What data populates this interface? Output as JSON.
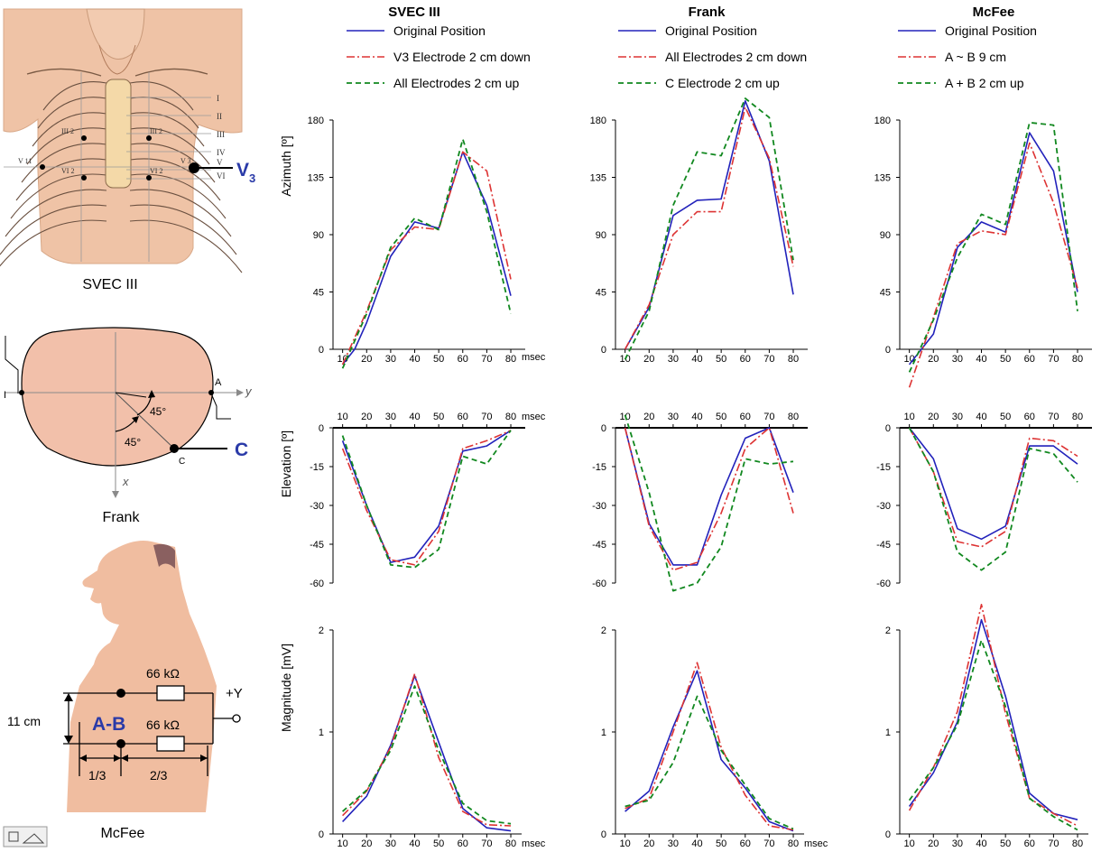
{
  "diagrams": {
    "svec": {
      "caption": "SVEC III",
      "electrode_label_main": "V",
      "electrode_label_sub": "3",
      "rib_labels": [
        "I",
        "II",
        "III",
        "IV",
        "V",
        "VI"
      ],
      "point_labels": {
        "iii_l": "III 2",
        "iii_r": "III 2",
        "vi_l": "VI 2",
        "vi_r": "VI 2",
        "v11": "V 11",
        "v3": "V 3"
      }
    },
    "frank": {
      "caption": "Frank",
      "label_A": "A",
      "label_I": "I",
      "label_C": "C",
      "label_C_small": "C",
      "axis_y": "y",
      "axis_x": "x",
      "angle1": "45°",
      "angle2": "45°"
    },
    "mcfee": {
      "caption": "McFee",
      "ab_label": "A-B",
      "r1": "66 kΩ",
      "r2": "66 kΩ",
      "plus_y": "+Y",
      "height": "11 cm",
      "frac1": "1/3",
      "frac2": "2/3"
    }
  },
  "columns": [
    {
      "title": "SVEC III",
      "legend": [
        "Original Position",
        "V3 Electrode 2 cm down",
        "All Electrodes 2 cm up"
      ]
    },
    {
      "title": "Frank",
      "legend": [
        "Original Position",
        "All Electrodes 2 cm down",
        "C Electrode 2 cm up"
      ]
    },
    {
      "title": "McFee",
      "legend": [
        "Original Position",
        "A ~ B   9 cm",
        "A + B   2 cm up"
      ]
    }
  ],
  "row_labels": [
    "Azimuth [º]",
    "Elevation [º]",
    "Magnitude [mV]"
  ],
  "x_unit": "msec",
  "colors": {
    "original": "#2222bb",
    "variant1": "#dd3333",
    "variant2": "#11881f"
  },
  "chart_data": [
    {
      "type": "line",
      "row": "Azimuth",
      "column": "SVEC III",
      "x": [
        10,
        20,
        30,
        40,
        50,
        60,
        70,
        80
      ],
      "ylim": [
        0,
        180
      ],
      "yticks": [
        0,
        45,
        90,
        135,
        180
      ],
      "x_extend": [
        6,
        86
      ],
      "series": [
        {
          "name": "Original Position",
          "x": [
            10,
            15,
            20,
            30,
            40,
            50,
            60,
            70,
            80
          ],
          "values": [
            -12,
            0,
            21,
            73,
            100,
            95,
            155,
            113,
            42
          ]
        },
        {
          "name": "V3 Electrode 2 cm down",
          "x": [
            10,
            20,
            30,
            40,
            50,
            60,
            70,
            80
          ],
          "values": [
            -12,
            30,
            78,
            96,
            94,
            155,
            140,
            55
          ]
        },
        {
          "name": "All Electrodes 2 cm up",
          "x": [
            10,
            20,
            30,
            40,
            50,
            60,
            70,
            80
          ],
          "values": [
            -15,
            28,
            80,
            103,
            94,
            165,
            108,
            28
          ]
        }
      ]
    },
    {
      "type": "line",
      "row": "Azimuth",
      "column": "Frank",
      "x": [
        10,
        20,
        30,
        40,
        50,
        60,
        70,
        80
      ],
      "ylim": [
        0,
        180
      ],
      "yticks": [
        0,
        45,
        90,
        135,
        180
      ],
      "x_extend": [
        6,
        86
      ],
      "series": [
        {
          "name": "Original Position",
          "x": [
            10,
            20,
            30,
            40,
            50,
            60,
            70,
            80
          ],
          "values": [
            0,
            33,
            105,
            117,
            118,
            195,
            148,
            43
          ]
        },
        {
          "name": "All Electrodes 2 cm down",
          "x": [
            10,
            20,
            30,
            40,
            50,
            60,
            70,
            80
          ],
          "values": [
            0,
            35,
            90,
            108,
            108,
            190,
            150,
            65
          ]
        },
        {
          "name": "C Electrode 2 cm up",
          "x": [
            10,
            20,
            30,
            40,
            50,
            60,
            70,
            80
          ],
          "values": [
            -8,
            30,
            113,
            155,
            152,
            197,
            182,
            70
          ]
        }
      ]
    },
    {
      "type": "line",
      "row": "Azimuth",
      "column": "McFee",
      "x": [
        10,
        20,
        30,
        40,
        50,
        60,
        70,
        80
      ],
      "ylim": [
        0,
        180
      ],
      "yticks": [
        0,
        45,
        90,
        135,
        180
      ],
      "x_extend": [
        6,
        86
      ],
      "series": [
        {
          "name": "Original Position",
          "x": [
            10,
            20,
            30,
            40,
            50,
            60,
            70,
            80
          ],
          "values": [
            -12,
            12,
            80,
            100,
            92,
            170,
            140,
            45
          ]
        },
        {
          "name": "A ~ B   9 cm",
          "x": [
            10,
            20,
            30,
            40,
            50,
            60,
            70,
            80
          ],
          "values": [
            -30,
            25,
            83,
            93,
            90,
            162,
            115,
            48
          ]
        },
        {
          "name": "A + B   2 cm up",
          "x": [
            10,
            20,
            30,
            40,
            50,
            60,
            70,
            80
          ],
          "values": [
            -18,
            23,
            72,
            106,
            98,
            178,
            176,
            30
          ]
        }
      ]
    },
    {
      "type": "line",
      "row": "Elevation",
      "column": "SVEC III",
      "x": [
        10,
        20,
        30,
        40,
        50,
        60,
        70,
        80
      ],
      "ylim": [
        -60,
        0
      ],
      "yticks": [
        0,
        -15,
        -30,
        -45,
        -60
      ],
      "x_extend": [
        6,
        86
      ],
      "series": [
        {
          "name": "Original Position",
          "x": [
            10,
            20,
            30,
            40,
            50,
            60,
            70,
            80
          ],
          "values": [
            -5,
            -30,
            -52,
            -50,
            -38,
            -9,
            -7,
            -1
          ]
        },
        {
          "name": "V3 Electrode 2 cm down",
          "x": [
            10,
            20,
            30,
            40,
            50,
            60,
            70,
            80
          ],
          "values": [
            -8,
            -32,
            -51,
            -53,
            -40,
            -8,
            -5,
            -1
          ]
        },
        {
          "name": "All Electrodes 2 cm up",
          "x": [
            10,
            20,
            30,
            40,
            50,
            60,
            70,
            80
          ],
          "values": [
            -3,
            -30,
            -53,
            -54,
            -47,
            -11,
            -14,
            -1
          ]
        }
      ]
    },
    {
      "type": "line",
      "row": "Elevation",
      "column": "Frank",
      "x": [
        10,
        20,
        30,
        40,
        50,
        60,
        70,
        80
      ],
      "ylim": [
        -60,
        0
      ],
      "yticks": [
        0,
        -15,
        -30,
        -45,
        -60
      ],
      "x_extend": [
        6,
        86
      ],
      "series": [
        {
          "name": "Original Position",
          "x": [
            10,
            20,
            30,
            40,
            50,
            60,
            70,
            80
          ],
          "values": [
            0,
            -37,
            -53,
            -53,
            -26,
            -4,
            0,
            -25
          ]
        },
        {
          "name": "All Electrodes 2 cm down",
          "x": [
            10,
            20,
            30,
            40,
            50,
            60,
            70,
            80
          ],
          "values": [
            0,
            -38,
            -55,
            -52,
            -33,
            -8,
            0,
            -33
          ]
        },
        {
          "name": "C Electrode 2 cm up",
          "x": [
            10,
            20,
            30,
            40,
            50,
            60,
            70,
            80
          ],
          "values": [
            5,
            -25,
            -63,
            -60,
            -46,
            -12,
            -14,
            -13
          ]
        }
      ]
    },
    {
      "type": "line",
      "row": "Elevation",
      "column": "McFee",
      "x": [
        10,
        20,
        30,
        40,
        50,
        60,
        70,
        80
      ],
      "ylim": [
        -60,
        0
      ],
      "yticks": [
        0,
        -15,
        -30,
        -45,
        -60
      ],
      "x_extend": [
        6,
        86
      ],
      "series": [
        {
          "name": "Original Position",
          "x": [
            10,
            20,
            30,
            40,
            50,
            60,
            70,
            80
          ],
          "values": [
            0,
            -12,
            -39,
            -43,
            -38,
            -7,
            -7,
            -14
          ]
        },
        {
          "name": "A ~ B   9 cm",
          "x": [
            10,
            20,
            30,
            40,
            50,
            60,
            70,
            80
          ],
          "values": [
            0,
            -17,
            -44,
            -46,
            -40,
            -4,
            -5,
            -11
          ]
        },
        {
          "name": "A + B   2 cm up",
          "x": [
            10,
            20,
            30,
            40,
            50,
            60,
            70,
            80
          ],
          "values": [
            0,
            -17,
            -48,
            -55,
            -48,
            -8,
            -10,
            -21
          ]
        }
      ]
    },
    {
      "type": "line",
      "row": "Magnitude",
      "column": "SVEC III",
      "x": [
        10,
        20,
        30,
        40,
        50,
        60,
        70,
        80
      ],
      "ylim": [
        0,
        2
      ],
      "yticks": [
        0,
        1,
        2
      ],
      "x_extend": [
        6,
        86
      ],
      "series": [
        {
          "name": "Original Position",
          "x": [
            10,
            20,
            30,
            40,
            50,
            60,
            70,
            80
          ],
          "values": [
            0.12,
            0.37,
            0.87,
            1.55,
            0.9,
            0.25,
            0.06,
            0.03
          ]
        },
        {
          "name": "V3 Electrode 2 cm down",
          "x": [
            10,
            20,
            30,
            40,
            50,
            60,
            70,
            80
          ],
          "values": [
            0.18,
            0.42,
            0.85,
            1.57,
            0.75,
            0.22,
            0.09,
            0.08
          ]
        },
        {
          "name": "All Electrodes 2 cm up",
          "x": [
            10,
            20,
            30,
            40,
            50,
            60,
            70,
            80
          ],
          "values": [
            0.22,
            0.43,
            0.82,
            1.45,
            0.82,
            0.3,
            0.13,
            0.1
          ]
        }
      ]
    },
    {
      "type": "line",
      "row": "Magnitude",
      "column": "Frank",
      "x": [
        10,
        20,
        30,
        40,
        50,
        60,
        70,
        80
      ],
      "ylim": [
        0,
        2
      ],
      "yticks": [
        0,
        1,
        2
      ],
      "x_extend": [
        6,
        86
      ],
      "series": [
        {
          "name": "Original Position",
          "x": [
            10,
            20,
            30,
            40,
            50,
            60,
            70,
            80
          ],
          "values": [
            0.22,
            0.42,
            1.05,
            1.6,
            0.73,
            0.45,
            0.12,
            0.03
          ]
        },
        {
          "name": "All Electrodes 2 cm down",
          "x": [
            10,
            20,
            30,
            40,
            50,
            60,
            70,
            80
          ],
          "values": [
            0.25,
            0.35,
            1.0,
            1.68,
            0.85,
            0.38,
            0.08,
            0.04
          ]
        },
        {
          "name": "C Electrode 2 cm up",
          "x": [
            10,
            20,
            30,
            40,
            50,
            60,
            70,
            80
          ],
          "values": [
            0.27,
            0.33,
            0.7,
            1.35,
            0.82,
            0.48,
            0.15,
            0.05
          ]
        }
      ]
    },
    {
      "type": "line",
      "row": "Magnitude",
      "column": "McFee",
      "x": [
        10,
        20,
        30,
        40,
        50,
        60,
        70,
        80
      ],
      "ylim": [
        0,
        2
      ],
      "yticks": [
        0,
        1,
        2
      ],
      "x_extend": [
        6,
        86
      ],
      "series": [
        {
          "name": "Original Position",
          "x": [
            10,
            20,
            30,
            40,
            50,
            60,
            70,
            80
          ],
          "values": [
            0.27,
            0.6,
            1.1,
            2.1,
            1.35,
            0.4,
            0.2,
            0.14
          ]
        },
        {
          "name": "A ~ B   9 cm",
          "x": [
            10,
            20,
            30,
            40,
            50,
            60,
            70,
            80
          ],
          "values": [
            0.23,
            0.65,
            1.2,
            2.25,
            1.18,
            0.35,
            0.2,
            0.08
          ]
        },
        {
          "name": "A + B   2 cm up",
          "x": [
            10,
            20,
            30,
            40,
            50,
            60,
            70,
            80
          ],
          "values": [
            0.33,
            0.65,
            1.07,
            1.9,
            1.25,
            0.35,
            0.17,
            0.04
          ]
        }
      ]
    }
  ]
}
